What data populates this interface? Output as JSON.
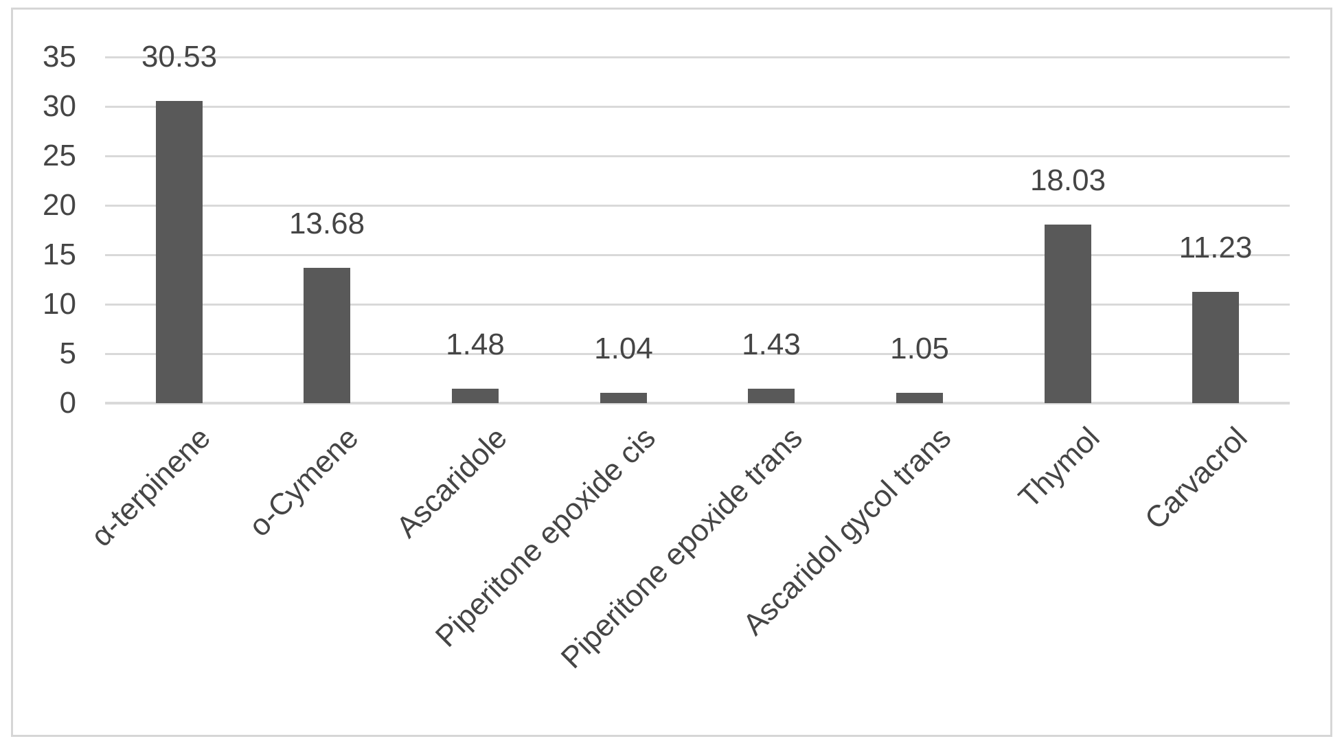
{
  "chart_data": {
    "type": "bar",
    "title": "",
    "xlabel": "",
    "ylabel": "",
    "categories": [
      "α-terpinene",
      "o-Cymene",
      "Ascaridole",
      "Piperitone epoxide cis",
      "Piperitone epoxide trans",
      "Ascaridol gycol trans",
      "Thymol",
      "Carvacrol"
    ],
    "values": [
      30.53,
      13.68,
      1.48,
      1.04,
      1.43,
      1.05,
      18.03,
      11.23
    ],
    "data_labels": [
      "30.53",
      "13.68",
      "1.48",
      "1.04",
      "1.43",
      "1.05",
      "18.03",
      "11.23"
    ],
    "y_ticks": [
      0,
      5,
      10,
      15,
      20,
      25,
      30,
      35
    ],
    "ylim": [
      0,
      35
    ],
    "grid": true,
    "legend": false,
    "colors": {
      "bar": "#595959",
      "gridline": "#d9d9d9",
      "axis_line": "#d9d9d9",
      "text": "#454545",
      "frame_border": "#d6d6d6",
      "background": "#ffffff"
    }
  }
}
